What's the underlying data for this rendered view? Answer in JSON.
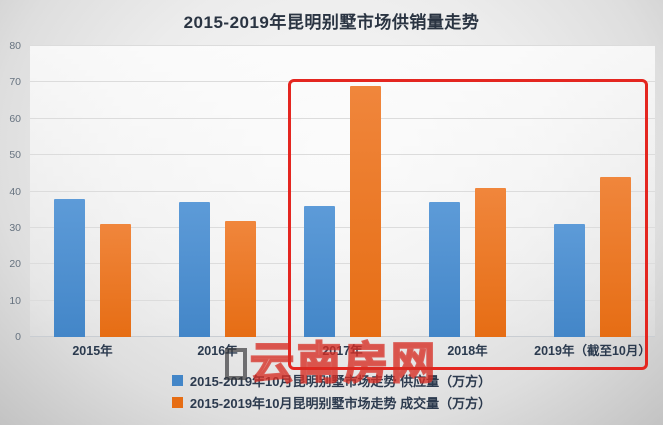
{
  "chart_data": {
    "type": "bar",
    "title": "2015-2019年昆明别墅市场供销量走势",
    "categories": [
      "2015年",
      "2016年",
      "2017年",
      "2018年",
      "2019年（截至10月）"
    ],
    "series": [
      {
        "name": "2015-2019年10月昆明别墅市场走势 供应量（万方）",
        "color": "#4386c8",
        "color_light": "#5d9bd8",
        "values": [
          38,
          37,
          36,
          37,
          31
        ]
      },
      {
        "name": "2015-2019年10月昆明别墅市场走势 成交量（万方）",
        "color": "#e66d14",
        "color_light": "#f0863c",
        "values": [
          31,
          32,
          69,
          41,
          44
        ]
      }
    ],
    "xlabel": "",
    "ylabel": "",
    "ylim": [
      0,
      80
    ],
    "yticks": [
      0,
      10,
      20,
      30,
      40,
      50,
      60,
      70,
      80
    ],
    "grid": true,
    "legend_position": "bottom",
    "highlight": {
      "from_index": 2,
      "to_index": 4,
      "top_value": 71,
      "color": "#e42620",
      "note": "red annotation box around 2017-2019 groups"
    }
  },
  "watermark": {
    "text": "云南房网",
    "color": "#d62d23"
  }
}
